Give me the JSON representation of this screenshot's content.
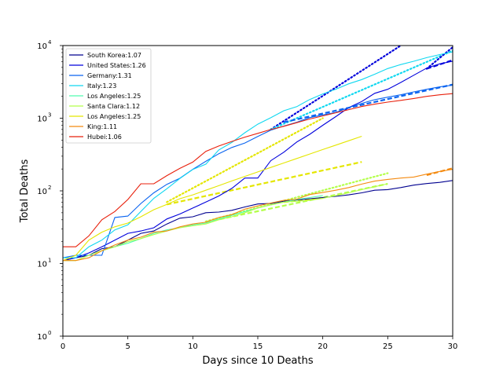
{
  "chart_data": {
    "type": "line",
    "xlabel": "Days since 10 Deaths",
    "ylabel": "Total Deaths",
    "xlim": [
      0,
      30
    ],
    "ylim": [
      1,
      10000
    ],
    "yscale": "log",
    "grid": false,
    "legend_position": "top-left",
    "x_ticks": [
      0,
      5,
      10,
      15,
      20,
      25,
      30
    ],
    "x_tick_labels": [
      "0",
      "5",
      "10",
      "15",
      "20",
      "25",
      "30"
    ],
    "y_ticks": [
      1,
      10,
      100,
      1000,
      10000
    ],
    "y_tick_labels": [
      {
        "base": "10",
        "exp": "0"
      },
      {
        "base": "10",
        "exp": "1"
      },
      {
        "base": "10",
        "exp": "2"
      },
      {
        "base": "10",
        "exp": "3"
      },
      {
        "base": "10",
        "exp": "4"
      }
    ],
    "series": [
      {
        "name": "South Korea:1.07",
        "color": "#00008f",
        "x": [
          0,
          1,
          2,
          3,
          4,
          5,
          6,
          7,
          8,
          9,
          10,
          11,
          12,
          13,
          14,
          15,
          16,
          17,
          18,
          19,
          20,
          21,
          22,
          23,
          24,
          25,
          26,
          27,
          28,
          29,
          30
        ],
        "y": [
          11,
          12,
          13,
          16,
          17,
          21,
          26,
          28,
          35,
          42,
          44,
          50,
          51,
          54,
          60,
          66,
          67,
          72,
          75,
          78,
          81,
          84,
          88,
          94,
          102,
          104,
          111,
          120,
          126,
          131,
          139
        ]
      },
      {
        "name": "United States:1.26",
        "color": "#0000dc",
        "x": [
          0,
          1,
          2,
          3,
          4,
          5,
          6,
          7,
          8,
          9,
          10,
          11,
          12,
          13,
          14,
          15,
          16,
          17,
          18,
          19,
          20,
          21,
          22,
          23,
          24,
          25,
          26,
          27,
          28,
          29,
          30
        ],
        "y": [
          11,
          12,
          14,
          17,
          21,
          26,
          28,
          31,
          41,
          48,
          58,
          70,
          85,
          108,
          150,
          150,
          260,
          340,
          470,
          600,
          800,
          1050,
          1400,
          1700,
          2200,
          2500,
          3100,
          3900,
          4900,
          5600,
          6100
        ]
      },
      {
        "name": "Germany:1.31",
        "color": "#0a64f0",
        "x": [
          0,
          1,
          2,
          3,
          4,
          5,
          6,
          7,
          8,
          9,
          10,
          11,
          12,
          13,
          14,
          15,
          16,
          17,
          18,
          19,
          20,
          21,
          22,
          23,
          24,
          25,
          26,
          27,
          28,
          29,
          30
        ],
        "y": [
          12,
          13,
          13,
          13,
          43,
          45,
          67,
          94,
          123,
          149,
          198,
          255,
          325,
          395,
          455,
          560,
          685,
          780,
          880,
          1020,
          1110,
          1200,
          1400,
          1600,
          1800,
          1950,
          2100,
          2300,
          2500,
          2700,
          2850
        ]
      },
      {
        "name": "Italy:1.23",
        "color": "#10d8f0",
        "x": [
          0,
          1,
          2,
          3,
          4,
          5,
          6,
          7,
          8,
          9,
          10,
          11,
          12,
          13,
          14,
          15,
          16,
          17,
          18,
          19,
          20,
          21,
          22,
          23,
          24,
          25,
          26,
          27,
          28,
          29,
          30
        ],
        "y": [
          12,
          12,
          17,
          21,
          29,
          34,
          52,
          79,
          107,
          148,
          197,
          233,
          366,
          463,
          631,
          827,
          1016,
          1266,
          1441,
          1809,
          2158,
          2503,
          2978,
          3405,
          4032,
          4825,
          5476,
          6077,
          6820,
          7503,
          8165
        ]
      },
      {
        "name": "Los Angeles:1.25",
        "color": "#50fcb0",
        "x": [
          0,
          1,
          2,
          3,
          4,
          5,
          6,
          7,
          8,
          9,
          10,
          11,
          12,
          13,
          14,
          15,
          16,
          17,
          18,
          19,
          20
        ],
        "y": [
          11,
          11,
          13,
          15,
          17,
          19,
          22,
          26,
          29,
          31,
          34,
          36,
          41,
          46,
          52,
          58,
          64,
          70,
          76,
          81,
          86
        ]
      },
      {
        "name": "Santa Clara:1.12",
        "color": "#b4ff4a",
        "x": [
          0,
          1,
          2,
          3,
          4,
          5,
          6,
          7,
          8,
          9,
          10,
          11,
          12,
          13,
          14,
          15,
          16,
          17,
          18,
          19,
          20,
          21,
          22,
          23,
          24,
          25
        ],
        "y": [
          11,
          11,
          13,
          15,
          17,
          20,
          22,
          25,
          28,
          31,
          33,
          35,
          40,
          44,
          50,
          58,
          64,
          70,
          72,
          74,
          79,
          86,
          94,
          104,
          114,
          125
        ]
      },
      {
        "name": "Los Angeles:1.25",
        "color": "#e4e600",
        "x": [
          0,
          1,
          2,
          3,
          4,
          5,
          6,
          7,
          8,
          9,
          10,
          11,
          12,
          13,
          14,
          15,
          16,
          17,
          18,
          19,
          20,
          21,
          22,
          23
        ],
        "y": [
          11,
          13,
          21,
          27,
          32,
          36,
          44,
          55,
          65,
          78,
          88,
          102,
          118,
          137,
          158,
          182,
          210,
          242,
          279,
          321,
          370,
          426,
          490,
          564
        ]
      },
      {
        "name": "King:1.11",
        "color": "#f48a10",
        "x": [
          0,
          1,
          2,
          3,
          4,
          5,
          6,
          7,
          8,
          9,
          10,
          11,
          12,
          13,
          14,
          15,
          16,
          17,
          18,
          19,
          20,
          21,
          22,
          23,
          24,
          25,
          26,
          27,
          28,
          29,
          30
        ],
        "y": [
          11,
          11,
          12,
          15,
          18,
          21,
          23,
          27,
          28,
          32,
          35,
          37,
          43,
          47,
          56,
          62,
          68,
          74,
          77,
          89,
          95,
          102,
          111,
          124,
          136,
          144,
          150,
          155,
          170,
          185,
          198
        ]
      },
      {
        "name": "Hubei:1.06",
        "color": "#e8200c",
        "x": [
          0,
          1,
          2,
          3,
          4,
          5,
          6,
          7,
          8,
          9,
          10,
          11,
          12,
          13,
          14,
          15,
          16,
          17,
          18,
          19,
          20,
          21,
          22,
          23,
          24,
          25,
          26,
          27,
          28,
          29,
          30
        ],
        "y": [
          17,
          17,
          24,
          40,
          52,
          76,
          125,
          125,
          162,
          204,
          249,
          350,
          414,
          479,
          549,
          618,
          699,
          773,
          868,
          975,
          1075,
          1187,
          1312,
          1450,
          1560,
          1665,
          1760,
          1870,
          2000,
          2100,
          2180
        ]
      }
    ],
    "projections": [
      {
        "color": "#0000dc",
        "style": "dotted",
        "x": [
          16,
          26
        ],
        "y": [
          700,
          10000
        ]
      },
      {
        "color": "#10d8f0",
        "style": "dotted",
        "x": [
          16,
          30
        ],
        "y": [
          700,
          8500
        ]
      },
      {
        "color": "#0000dc",
        "style": "dotted",
        "x": [
          28,
          30
        ],
        "y": [
          4800,
          9500
        ]
      },
      {
        "color": "#0000dc",
        "style": "dashed",
        "x": [
          28,
          30
        ],
        "y": [
          4800,
          6300
        ]
      },
      {
        "color": "#e4e600",
        "style": "dotted",
        "x": [
          8,
          20
        ],
        "y": [
          70,
          1000
        ]
      },
      {
        "color": "#0a64f0",
        "style": "dashed",
        "x": [
          17,
          30
        ],
        "y": [
          880,
          2900
        ]
      },
      {
        "color": "#e4e600",
        "style": "dashed",
        "x": [
          8,
          23
        ],
        "y": [
          65,
          250
        ]
      },
      {
        "color": "#b4ff4a",
        "style": "dotted",
        "x": [
          11,
          25
        ],
        "y": [
          38,
          175
        ]
      },
      {
        "color": "#b4ff4a",
        "style": "dashed",
        "x": [
          11,
          25
        ],
        "y": [
          37,
          125
        ]
      },
      {
        "color": "#f48a10",
        "style": "dashed",
        "x": [
          28,
          30
        ],
        "y": [
          165,
          205
        ]
      },
      {
        "color": "#e4e600",
        "style": "dashed",
        "x": [
          17,
          20
        ],
        "y": [
          70,
          80
        ]
      }
    ]
  }
}
